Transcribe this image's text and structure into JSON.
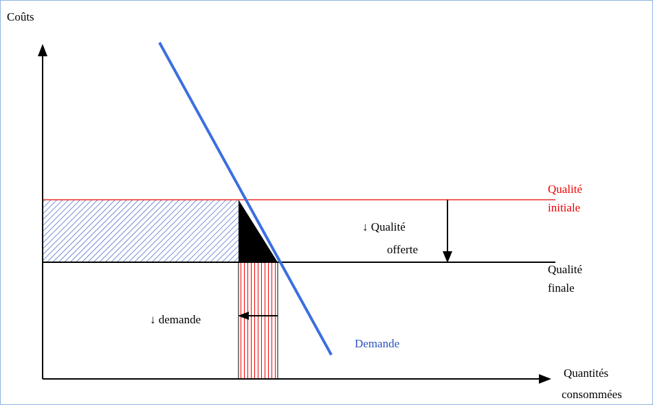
{
  "labels": {
    "y_axis": "Coûts",
    "initial_quality": [
      "Qualité",
      "initiale"
    ],
    "offered_quality_drop": [
      "↓ Qualité",
      "offerte"
    ],
    "final_quality": [
      "Qualité",
      "finale"
    ],
    "demand_drop": "↓ demande",
    "demand": "Demande",
    "x_axis": [
      "Quantités",
      "consommées"
    ]
  }
}
